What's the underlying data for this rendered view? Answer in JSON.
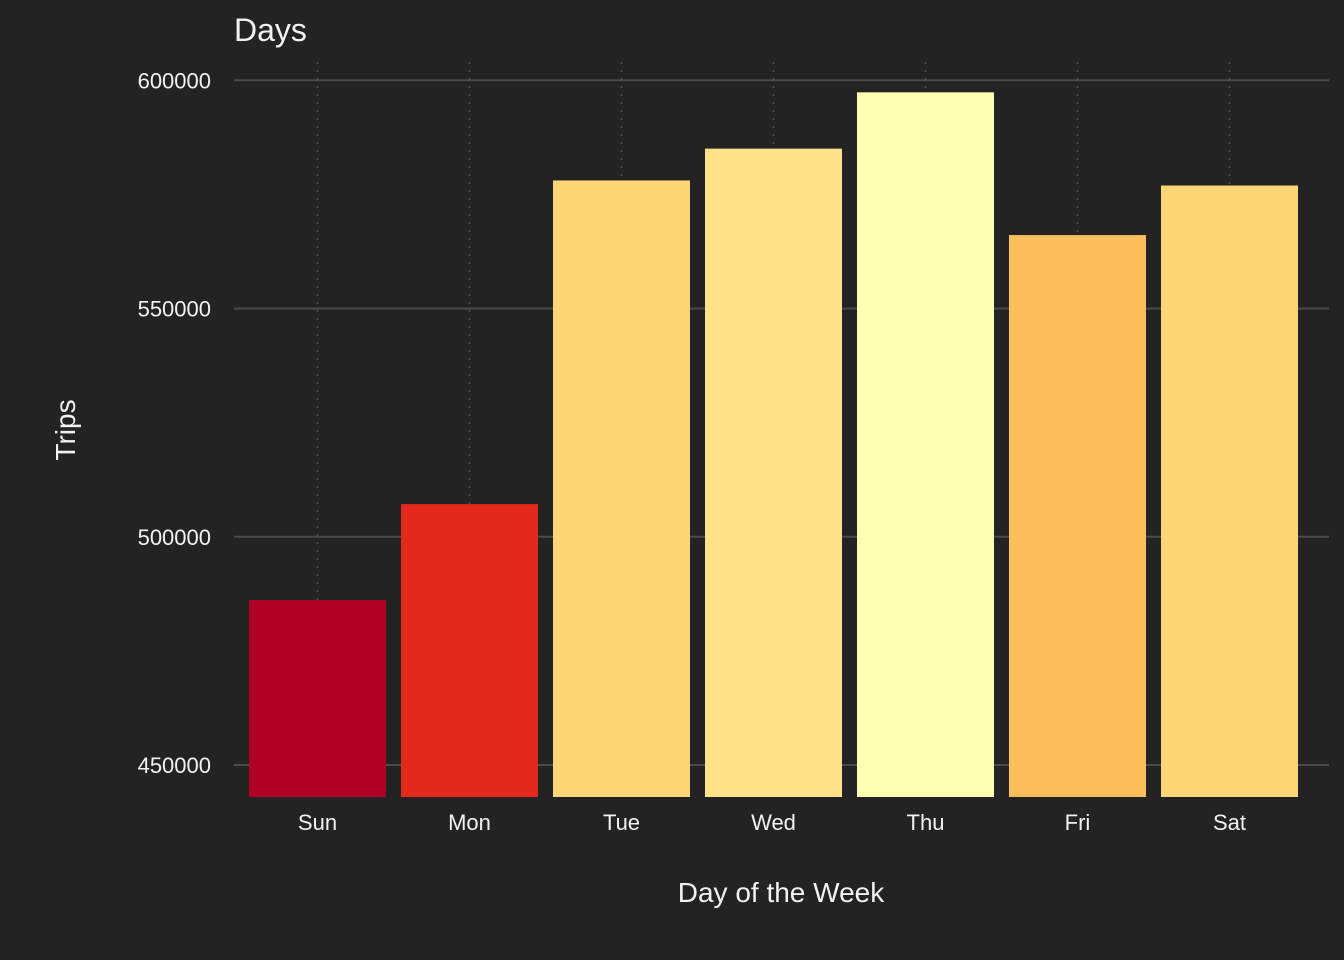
{
  "chart_data": {
    "type": "bar",
    "title": "Days",
    "xlabel": "Day of the Week",
    "ylabel": "Trips",
    "categories": [
      "Sun",
      "Mon",
      "Tue",
      "Wed",
      "Thu",
      "Fri",
      "Sat"
    ],
    "values": [
      486133,
      507167,
      578057,
      585025,
      597354,
      566092,
      576946
    ],
    "colors": [
      "#b10026",
      "#e3281e",
      "#fed676",
      "#fee289",
      "#ffffb2",
      "#febf5b",
      "#fed676"
    ],
    "ylim": [
      443000,
      604000
    ],
    "yticks": [
      450000,
      500000,
      550000,
      600000
    ],
    "ytick_labels": [
      "450000",
      "500000",
      "550000",
      "600000"
    ],
    "grid": true,
    "legend": "none",
    "background": "#232323"
  }
}
